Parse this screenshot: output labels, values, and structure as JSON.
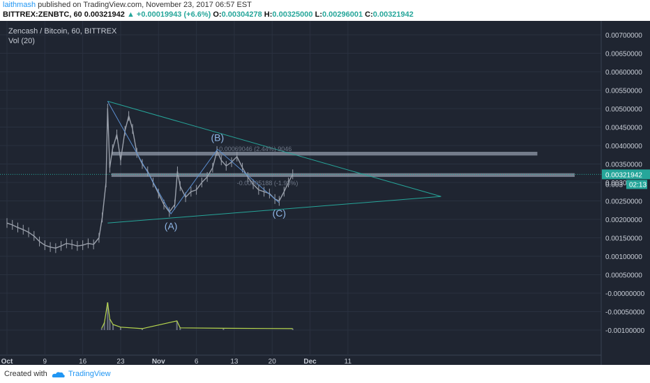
{
  "header": {
    "author": "laithmash",
    "published_text": "published on TradingView.com, November 23, 2017 06:57 EST",
    "symbol_line": "BITTREX:ZENBTC, 60",
    "last_price": "0.00321942",
    "change_arrow": "▲",
    "change": "+0.00019943 (+6.6%)",
    "open_label": "O:",
    "open": "0.00304278",
    "high_label": "H:",
    "high": "0.00325000",
    "low_label": "L:",
    "low": "0.00296001",
    "close_label": "C:",
    "close": "0.00321942"
  },
  "legend": {
    "series_title": "Zencash / Bitcoin, 60, BITTREX",
    "indicator": "Vol (20)"
  },
  "footer": {
    "created_with": "Created with",
    "brand": "TradingView"
  },
  "colors": {
    "background": "#1f2531",
    "grid": "#2a3140",
    "candle": "#9aa0ab",
    "trendline": "#26a69a",
    "zone": "#b9c4d6",
    "wave_label": "#8fb6e6",
    "price_tag": "#26a69a",
    "volume": "#b8d84e"
  },
  "chart_data": {
    "type": "line",
    "title": "Zencash / Bitcoin, 60, BITTREX",
    "x_tick_labels": [
      "Oct",
      "9",
      "16",
      "23",
      "Nov",
      "6",
      "13",
      "20",
      "Dec",
      "11"
    ],
    "y_tick_labels": [
      "0.00700000",
      "0.00650000",
      "0.00600000",
      "0.00550000",
      "0.00500000",
      "0.00450000",
      "0.00400000",
      "0.00350000",
      "0.00300000",
      "0.00250000",
      "0.00200000",
      "0.00150000",
      "0.00100000",
      "0.00050000",
      "-0.00000000",
      "-0.00050000",
      "-0.00100000"
    ],
    "ylim": [
      -0.001,
      0.0072
    ],
    "xlim_days": [
      0,
      78
    ],
    "x_day_index_note_values": [
      0,
      7,
      14,
      21,
      28,
      35,
      42,
      49,
      56,
      63
    ],
    "series": [
      {
        "name": "ZENBTC",
        "points": [
          [
            0,
            0.0019
          ],
          [
            1,
            0.00185
          ],
          [
            2,
            0.00178
          ],
          [
            3,
            0.00172
          ],
          [
            4,
            0.00165
          ],
          [
            5,
            0.00155
          ],
          [
            6,
            0.0014
          ],
          [
            7,
            0.0013
          ],
          [
            8,
            0.00125
          ],
          [
            9,
            0.00122
          ],
          [
            10,
            0.00128
          ],
          [
            11,
            0.00135
          ],
          [
            12,
            0.00132
          ],
          [
            13,
            0.00128
          ],
          [
            14,
            0.0013
          ],
          [
            15,
            0.00135
          ],
          [
            16,
            0.00132
          ],
          [
            17,
            0.0015
          ],
          [
            17.6,
            0.00205
          ],
          [
            18.3,
            0.003
          ],
          [
            18.6,
            0.005
          ],
          [
            19.0,
            0.0034
          ],
          [
            19.5,
            0.0039
          ],
          [
            20.3,
            0.0043
          ],
          [
            21.0,
            0.0036
          ],
          [
            21.8,
            0.0044
          ],
          [
            22.5,
            0.0048
          ],
          [
            23.2,
            0.00445
          ],
          [
            24.0,
            0.0038
          ],
          [
            25.0,
            0.0035
          ],
          [
            26.0,
            0.0033
          ],
          [
            27.0,
            0.003
          ],
          [
            28.0,
            0.0027
          ],
          [
            29.0,
            0.0024
          ],
          [
            30.0,
            0.0022
          ],
          [
            31.0,
            0.0024
          ],
          [
            31.5,
            0.0033
          ],
          [
            32.0,
            0.0029
          ],
          [
            33.0,
            0.0026
          ],
          [
            34.0,
            0.00275
          ],
          [
            35.0,
            0.0028
          ],
          [
            36.0,
            0.003
          ],
          [
            37.0,
            0.00315
          ],
          [
            38.0,
            0.0034
          ],
          [
            38.8,
            0.00385
          ],
          [
            39.6,
            0.0036
          ],
          [
            40.5,
            0.00345
          ],
          [
            41.5,
            0.00355
          ],
          [
            42.5,
            0.0037
          ],
          [
            43.5,
            0.0034
          ],
          [
            44.5,
            0.00315
          ],
          [
            45.5,
            0.00295
          ],
          [
            46.5,
            0.0028
          ],
          [
            47.5,
            0.00275
          ],
          [
            48.5,
            0.0027
          ],
          [
            49.5,
            0.00255
          ],
          [
            50.3,
            0.0025
          ],
          [
            51.2,
            0.00275
          ],
          [
            52.0,
            0.003
          ],
          [
            52.8,
            0.00322
          ]
        ]
      },
      {
        "name": "Vol",
        "points": [
          [
            17.5,
            -0.00095
          ],
          [
            18.0,
            -0.0008
          ],
          [
            18.6,
            -0.00025
          ],
          [
            19.0,
            -0.0007
          ],
          [
            19.6,
            -0.00085
          ],
          [
            21.0,
            -0.00092
          ],
          [
            25.0,
            -0.00096
          ],
          [
            31.4,
            -0.00075
          ],
          [
            32.0,
            -0.00094
          ],
          [
            40.0,
            -0.00095
          ],
          [
            52.8,
            -0.00096
          ]
        ]
      }
    ],
    "annotations": [
      {
        "label": "(A)"
      },
      {
        "label": "(B)"
      },
      {
        "label": "(C)"
      },
      {
        "label": "0.00069046 (2.44%) 9046"
      },
      {
        "label": "-0.00005188 (-1.93%)"
      }
    ],
    "current_price_label": "0.00321942",
    "countdown_label": "02:13",
    "countdown_price_prefix": "0.003",
    "zones": [
      [
        0.00373,
        0.00383
      ],
      [
        0.00315,
        0.00325
      ]
    ],
    "grid": true
  }
}
